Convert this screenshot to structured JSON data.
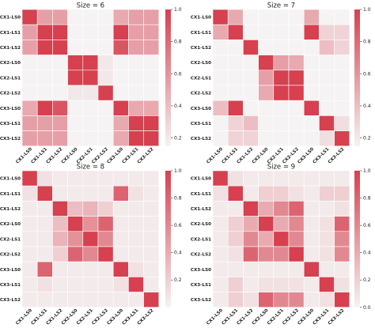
{
  "labels": [
    "CX1-LS0",
    "CX1-LS1",
    "CX1-LS2",
    "CX2-LS0",
    "CX2-LS1",
    "CX2-LS2",
    "CX3-LS0",
    "CX3-LS1",
    "CX3-LS2"
  ],
  "colorbar": {
    "ticks": [
      0.2,
      0.4,
      0.6,
      0.8,
      1.0
    ],
    "low_color": "#f5f3f3",
    "high_color": "#d6404f"
  },
  "chart_data": [
    {
      "type": "heatmap",
      "title": "Size = 6",
      "vmin": 0.15,
      "vmax": 1.0,
      "colorbar_ticks": [
        0.2,
        0.4,
        0.6,
        0.8,
        1.0
      ],
      "matrix": [
        [
          1.0,
          0.55,
          0.55,
          0.12,
          0.12,
          0.12,
          0.5,
          0.55,
          0.55
        ],
        [
          0.55,
          1.0,
          1.0,
          0.12,
          0.12,
          0.12,
          1.0,
          0.55,
          0.55
        ],
        [
          0.55,
          1.0,
          1.0,
          0.12,
          0.12,
          0.12,
          0.9,
          0.55,
          0.55
        ],
        [
          0.12,
          0.12,
          0.12,
          1.0,
          1.0,
          0.2,
          0.12,
          0.12,
          0.12
        ],
        [
          0.12,
          0.12,
          0.12,
          1.0,
          1.0,
          0.2,
          0.12,
          0.12,
          0.12
        ],
        [
          0.12,
          0.12,
          0.12,
          0.2,
          0.2,
          1.0,
          0.12,
          0.12,
          0.12
        ],
        [
          0.5,
          1.0,
          0.9,
          0.12,
          0.12,
          0.12,
          1.0,
          0.5,
          0.5
        ],
        [
          0.55,
          0.55,
          0.55,
          0.12,
          0.12,
          0.12,
          0.5,
          1.0,
          1.0
        ],
        [
          0.55,
          0.55,
          0.55,
          0.12,
          0.12,
          0.12,
          0.5,
          1.0,
          1.0
        ]
      ]
    },
    {
      "type": "heatmap",
      "title": "Size = 7",
      "vmin": 0.15,
      "vmax": 1.0,
      "colorbar_ticks": [
        0.2,
        0.4,
        0.6,
        0.8,
        1.0
      ],
      "matrix": [
        [
          1.0,
          0.5,
          0.12,
          0.12,
          0.12,
          0.12,
          0.5,
          0.12,
          0.12
        ],
        [
          0.5,
          1.0,
          0.12,
          0.12,
          0.12,
          0.12,
          1.0,
          0.3,
          0.3
        ],
        [
          0.12,
          0.12,
          1.0,
          0.12,
          0.12,
          0.12,
          0.12,
          0.4,
          0.3
        ],
        [
          0.12,
          0.12,
          0.12,
          1.0,
          0.55,
          0.5,
          0.12,
          0.12,
          0.12
        ],
        [
          0.12,
          0.12,
          0.12,
          0.55,
          1.0,
          1.0,
          0.12,
          0.12,
          0.12
        ],
        [
          0.12,
          0.12,
          0.12,
          0.5,
          1.0,
          1.0,
          0.12,
          0.12,
          0.12
        ],
        [
          0.4,
          1.0,
          0.12,
          0.12,
          0.12,
          0.12,
          1.0,
          0.12,
          0.12
        ],
        [
          0.12,
          0.3,
          0.4,
          0.12,
          0.12,
          0.12,
          0.12,
          1.0,
          0.25
        ],
        [
          0.12,
          0.3,
          0.3,
          0.12,
          0.12,
          0.12,
          0.12,
          0.25,
          1.0
        ]
      ]
    },
    {
      "type": "heatmap",
      "title": "Size = 8",
      "vmin": 0.0,
      "vmax": 1.0,
      "colorbar_ticks": [
        0.2,
        0.4,
        0.6,
        0.8,
        1.0
      ],
      "matrix": [
        [
          1.0,
          0.1,
          0.05,
          0.05,
          0.05,
          0.05,
          0.05,
          0.05,
          0.05
        ],
        [
          0.1,
          1.0,
          0.05,
          0.05,
          0.05,
          0.05,
          0.8,
          0.1,
          0.05
        ],
        [
          0.05,
          0.05,
          1.0,
          0.3,
          0.35,
          0.2,
          0.05,
          0.05,
          0.05
        ],
        [
          0.05,
          0.05,
          0.3,
          1.0,
          0.55,
          0.8,
          0.05,
          0.05,
          0.05
        ],
        [
          0.05,
          0.05,
          0.35,
          0.55,
          1.0,
          0.6,
          0.05,
          0.05,
          0.05
        ],
        [
          0.05,
          0.05,
          0.2,
          0.8,
          0.6,
          1.0,
          0.05,
          0.05,
          0.05
        ],
        [
          0.05,
          0.8,
          0.05,
          0.05,
          0.05,
          0.05,
          1.0,
          0.1,
          0.05
        ],
        [
          0.05,
          0.1,
          0.05,
          0.05,
          0.05,
          0.05,
          0.1,
          1.0,
          0.05
        ],
        [
          0.05,
          0.05,
          0.05,
          0.05,
          0.05,
          0.05,
          0.05,
          0.05,
          1.0
        ]
      ]
    },
    {
      "type": "heatmap",
      "title": "Size = 9",
      "vmin": 0.0,
      "vmax": 1.0,
      "colorbar_ticks": [
        0.0,
        0.2,
        0.4,
        0.6,
        0.8,
        1.0
      ],
      "matrix": [
        [
          1.0,
          0.1,
          0.05,
          0.05,
          0.05,
          0.05,
          0.05,
          0.05,
          0.05
        ],
        [
          0.1,
          1.0,
          0.05,
          0.2,
          0.2,
          0.1,
          0.05,
          0.2,
          0.2
        ],
        [
          0.05,
          0.05,
          1.0,
          0.4,
          0.6,
          0.8,
          0.05,
          0.05,
          0.1
        ],
        [
          0.05,
          0.2,
          0.4,
          1.0,
          0.4,
          0.6,
          0.05,
          0.1,
          0.8
        ],
        [
          0.05,
          0.2,
          0.6,
          0.4,
          1.0,
          0.6,
          0.05,
          0.1,
          0.6
        ],
        [
          0.05,
          0.1,
          0.8,
          0.6,
          0.6,
          1.0,
          0.05,
          0.1,
          0.6
        ],
        [
          0.05,
          0.05,
          0.05,
          0.05,
          0.05,
          0.05,
          1.0,
          0.05,
          0.05
        ],
        [
          0.05,
          0.2,
          0.05,
          0.1,
          0.1,
          0.1,
          0.05,
          1.0,
          0.1
        ],
        [
          0.05,
          0.2,
          0.1,
          0.8,
          0.6,
          0.6,
          0.05,
          0.1,
          1.0
        ]
      ]
    }
  ]
}
